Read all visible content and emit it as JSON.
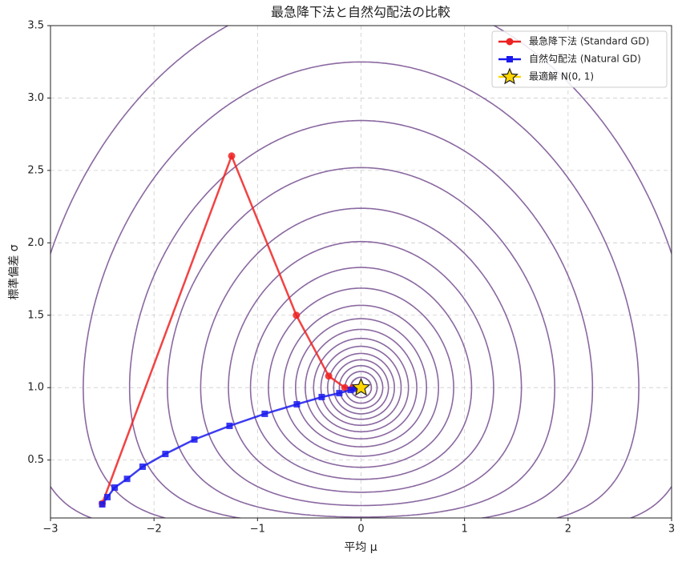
{
  "chart_data": {
    "type": "line",
    "title": "最急降下法と自然勾配法の比較",
    "xlabel": "平均 μ",
    "ylabel": "標準偏差 σ",
    "xlim": [
      -3,
      3
    ],
    "ylim": [
      0.1,
      3.5
    ],
    "xticks": [
      {
        "value": -3,
        "label": "−3"
      },
      {
        "value": -2,
        "label": "−2"
      },
      {
        "value": -1,
        "label": "−1"
      },
      0,
      1,
      2,
      3
    ],
    "yticks": [
      0.5,
      {
        "value": 1.0,
        "label": "1.0"
      },
      {
        "value": 1.5,
        "label": "1.5"
      },
      {
        "value": 2.0,
        "label": "2.0"
      },
      {
        "value": 2.5,
        "label": "2.5"
      },
      {
        "value": 3.0,
        "label": "3.0"
      },
      {
        "value": 3.5,
        "label": "3.5"
      }
    ],
    "grid": true,
    "legend": "upper right",
    "contour_color": "#8a68a0",
    "contour_levels": [
      0.005,
      0.012,
      0.022,
      0.035,
      0.052,
      0.075,
      0.105,
      0.145,
      0.2,
      0.28,
      0.4,
      0.57,
      0.82,
      1.2,
      1.75,
      2.5,
      3.6,
      5.2
    ],
    "series": [
      {
        "name": "最急降下法 (Standard GD)",
        "color": "#ee2222",
        "marker": "circle",
        "x": [
          -2.5,
          -1.25,
          -0.625,
          -0.3125,
          -0.156,
          -0.08
        ],
        "values": [
          0.2,
          2.6,
          1.5,
          1.08,
          1.0,
          1.0
        ]
      },
      {
        "name": "自然勾配法 (Natural GD)",
        "color": "#1a1aee",
        "marker": "square",
        "x": [
          -2.5,
          -2.45,
          -2.38,
          -2.26,
          -2.11,
          -1.89,
          -1.61,
          -1.27,
          -0.93,
          -0.62,
          -0.38,
          -0.21,
          -0.1,
          -0.05
        ],
        "values": [
          0.194,
          0.244,
          0.31,
          0.37,
          0.454,
          0.542,
          0.642,
          0.736,
          0.819,
          0.885,
          0.935,
          0.962,
          0.984,
          0.992
        ]
      },
      {
        "name": "最適解 N(0, 1)",
        "color": "#ffd700",
        "marker": "star",
        "x": [
          0
        ],
        "values": [
          1
        ]
      }
    ]
  }
}
